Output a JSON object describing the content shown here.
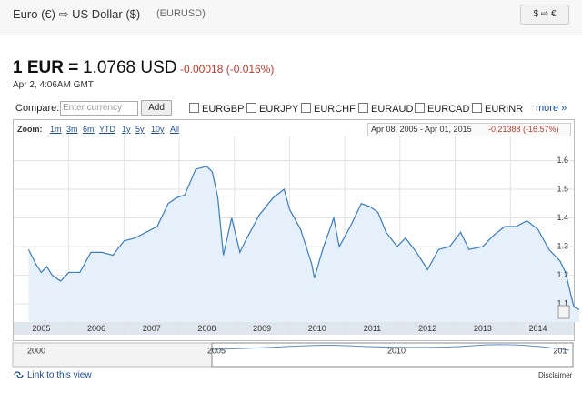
{
  "header": {
    "title": "Euro (€) ⇨ US Dollar ($)",
    "symbol": "(EURUSD)",
    "swap_button": "$ ⇨ €"
  },
  "quote": {
    "base": "1 EUR =",
    "rate": "1.0768 USD",
    "change": "-0.00018 (-0.016%)",
    "time": "Apr 2, 4:06AM GMT"
  },
  "compare": {
    "label": "Compare:",
    "placeholder": "Enter currency",
    "button": "Add",
    "options": [
      "EURGBP",
      "EURJPY",
      "EURCHF",
      "EURAUD",
      "EURCAD",
      "EURINR"
    ],
    "more": "more »"
  },
  "zoom": {
    "label": "Zoom:",
    "options": [
      "1m",
      "3m",
      "6m",
      "YTD",
      "1y",
      "5y",
      "10y",
      "All"
    ],
    "range": "Apr 08, 2005 - Apr 01, 2015",
    "change": "-0.21388 (-16.57%)"
  },
  "chart_data": {
    "type": "area",
    "x": [
      2005.27,
      2005.4,
      2005.5,
      2005.6,
      2005.7,
      2005.85,
      2006.0,
      2006.2,
      2006.4,
      2006.6,
      2006.8,
      2007.0,
      2007.2,
      2007.4,
      2007.6,
      2007.8,
      2007.95,
      2008.1,
      2008.3,
      2008.5,
      2008.6,
      2008.7,
      2008.8,
      2008.95,
      2009.1,
      2009.2,
      2009.45,
      2009.7,
      2009.9,
      2010.0,
      2010.2,
      2010.4,
      2010.45,
      2010.6,
      2010.8,
      2010.9,
      2011.1,
      2011.3,
      2011.45,
      2011.6,
      2011.75,
      2011.95,
      2012.1,
      2012.3,
      2012.5,
      2012.7,
      2012.9,
      2013.1,
      2013.25,
      2013.5,
      2013.7,
      2013.9,
      2014.1,
      2014.3,
      2014.5,
      2014.7,
      2014.9,
      2015.0,
      2015.15,
      2015.25
    ],
    "values": [
      1.29,
      1.24,
      1.21,
      1.23,
      1.2,
      1.18,
      1.21,
      1.21,
      1.28,
      1.28,
      1.27,
      1.32,
      1.33,
      1.35,
      1.37,
      1.45,
      1.47,
      1.48,
      1.57,
      1.58,
      1.56,
      1.47,
      1.27,
      1.4,
      1.28,
      1.32,
      1.41,
      1.47,
      1.5,
      1.43,
      1.36,
      1.24,
      1.19,
      1.29,
      1.4,
      1.3,
      1.37,
      1.45,
      1.44,
      1.42,
      1.35,
      1.3,
      1.33,
      1.28,
      1.22,
      1.29,
      1.3,
      1.35,
      1.29,
      1.3,
      1.34,
      1.37,
      1.37,
      1.39,
      1.36,
      1.29,
      1.25,
      1.21,
      1.09,
      1.08
    ],
    "color": "#3a7cc0",
    "fill": "#e6f0fa",
    "xlim": [
      2005.0,
      2015.15
    ],
    "xticks": [
      2005,
      2006,
      2007,
      2008,
      2009,
      2010,
      2011,
      2012,
      2013,
      2014
    ],
    "ylim": [
      1.037,
      1.684
    ],
    "yticks": [
      1.1,
      1.2,
      1.3,
      1.4,
      1.5,
      1.6
    ],
    "grid": true
  },
  "navigator": {
    "labels": [
      "2000",
      "2005",
      "2010",
      "201"
    ]
  },
  "footer": {
    "link": "Link to this view",
    "disclaimer": "Disclaimer"
  }
}
